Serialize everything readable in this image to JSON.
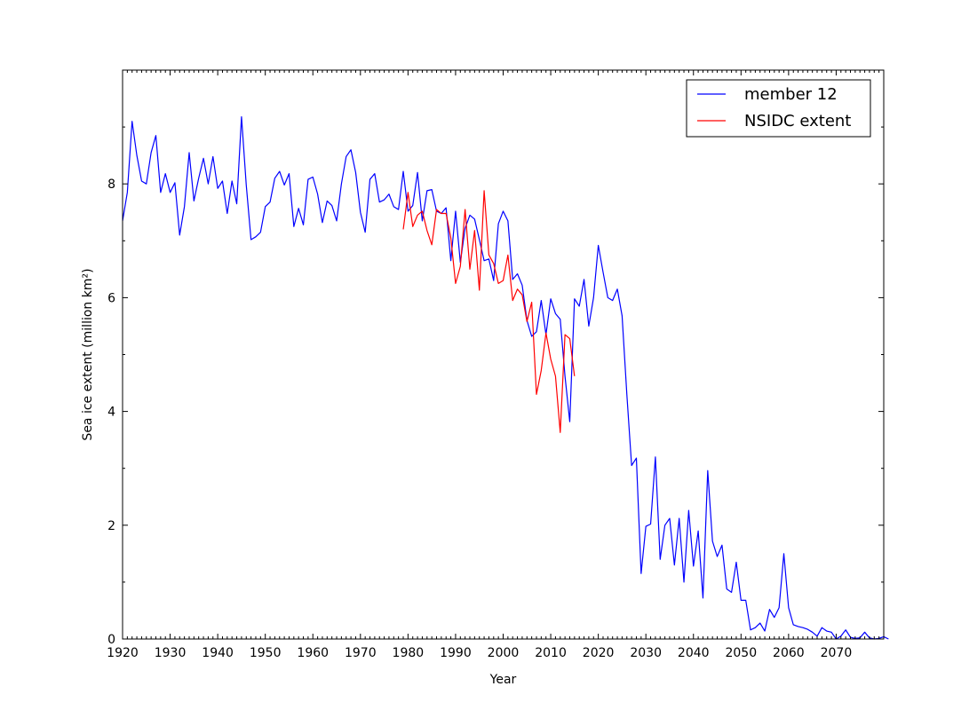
{
  "chart_data": {
    "type": "line",
    "xlabel": "Year",
    "ylabel": "Sea ice extent (million km²)",
    "xlim": [
      1920,
      2080
    ],
    "ylim": [
      0,
      10
    ],
    "x_ticks": [
      1920,
      1930,
      1940,
      1950,
      1960,
      1970,
      1980,
      1990,
      2000,
      2010,
      2020,
      2030,
      2040,
      2050,
      2060,
      2070
    ],
    "x_tick_labels": [
      "1920",
      "1930",
      "1940",
      "1950",
      "1960",
      "1970",
      "1980",
      "1990",
      "2000",
      "2010",
      "2020",
      "2030",
      "2040",
      "2050",
      "2060",
      "2070"
    ],
    "y_ticks": [
      0,
      2,
      4,
      6,
      8
    ],
    "y_tick_labels": [
      "0",
      "2",
      "4",
      "6",
      "8"
    ],
    "grid": false,
    "legend_position": "top-right",
    "series": [
      {
        "name": "member 12",
        "color": "#0000ff",
        "x_start": 1920,
        "values": [
          7.35,
          7.85,
          9.1,
          8.5,
          8.05,
          8.0,
          8.55,
          8.85,
          7.85,
          8.18,
          7.85,
          8.02,
          7.1,
          7.6,
          8.55,
          7.7,
          8.1,
          8.45,
          8.0,
          8.48,
          7.92,
          8.05,
          7.48,
          8.05,
          7.65,
          9.18,
          7.98,
          7.02,
          7.07,
          7.15,
          7.6,
          7.68,
          8.1,
          8.22,
          7.98,
          8.18,
          7.25,
          7.57,
          7.28,
          8.08,
          8.12,
          7.82,
          7.32,
          7.7,
          7.62,
          7.35,
          8.0,
          8.48,
          8.6,
          8.2,
          7.5,
          7.15,
          8.08,
          8.18,
          7.68,
          7.72,
          7.82,
          7.6,
          7.55,
          8.22,
          7.52,
          7.62,
          8.2,
          7.35,
          7.88,
          7.9,
          7.52,
          7.48,
          7.58,
          6.65,
          7.52,
          6.62,
          7.22,
          7.45,
          7.38,
          7.02,
          6.65,
          6.68,
          6.3,
          7.3,
          7.52,
          7.35,
          6.32,
          6.42,
          6.22,
          5.6,
          5.32,
          5.4,
          5.95,
          5.35,
          5.98,
          5.72,
          5.62,
          4.62,
          3.82,
          5.98,
          5.85,
          6.32,
          5.5,
          6.0,
          6.92,
          6.45,
          6.0,
          5.95,
          6.15,
          5.68,
          4.3,
          3.05,
          3.18,
          1.15,
          1.98,
          2.02,
          3.2,
          1.4,
          2.0,
          2.12,
          1.3,
          2.12,
          1.0,
          2.26,
          1.28,
          1.9,
          0.72,
          2.96,
          1.72,
          1.45,
          1.65,
          0.88,
          0.82,
          1.35,
          0.68,
          0.68,
          0.16,
          0.2,
          0.28,
          0.14,
          0.52,
          0.38,
          0.55,
          1.5,
          0.55,
          0.25,
          0.22,
          0.2,
          0.17,
          0.12,
          0.05,
          0.2,
          0.14,
          0.12,
          0.0,
          0.05,
          0.16,
          0.03,
          0.01,
          0.02,
          0.12,
          0.02,
          0.0,
          0.01,
          0.04,
          0.0
        ]
      },
      {
        "name": "NSIDC extent",
        "color": "#ff0000",
        "x_start": 1979,
        "values": [
          7.2,
          7.85,
          7.25,
          7.45,
          7.52,
          7.18,
          6.93,
          7.55,
          7.48,
          7.48,
          7.05,
          6.25,
          6.55,
          7.55,
          6.5,
          7.18,
          6.13,
          7.88,
          6.75,
          6.6,
          6.25,
          6.3,
          6.75,
          5.95,
          6.15,
          6.05,
          5.58,
          5.92,
          4.3,
          4.72,
          5.38,
          4.92,
          4.62,
          3.63,
          5.35,
          5.28,
          4.62
        ]
      }
    ]
  }
}
